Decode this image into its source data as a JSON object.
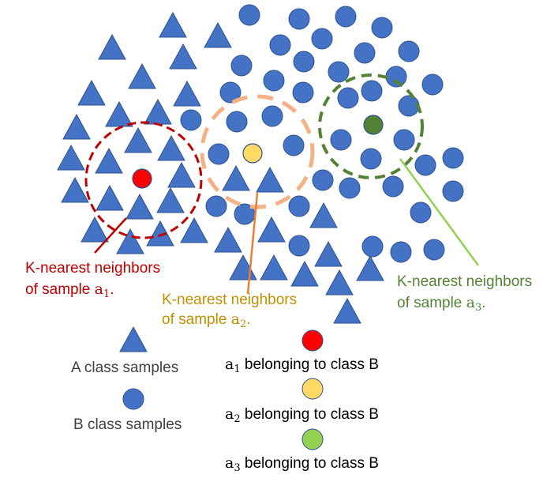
{
  "colors": {
    "samples": "#4472c4",
    "stroke": "#2f528f",
    "a1": "#ff0000",
    "a2": "#ffd966",
    "a3": "#548235",
    "a3_legend": "#92d050",
    "ring1": "#c00000",
    "ring2": "#f4b183",
    "ring3": "#548235",
    "label1": "#c00000",
    "label2": "#bf9000",
    "label3": "#548235",
    "pointer1": "#c00000",
    "pointer2": "#ed7d31",
    "pointer3": "#92d050",
    "text": "#404040"
  },
  "neighborhoods": [
    {
      "id": "1",
      "line1": "K-nearest neighbors",
      "line2_prefix": "of sample ",
      "var": "a",
      "sub": "1",
      "suffix": "."
    },
    {
      "id": "2",
      "line1": "K-nearest neighbors",
      "line2_prefix": "of sample ",
      "var": "a",
      "sub": "2",
      "suffix": "."
    },
    {
      "id": "3",
      "line1": "K-nearest neighbors",
      "line2_prefix": "of sample ",
      "var": "a",
      "sub": "3",
      "suffix": "."
    }
  ],
  "legend": {
    "class_a": "A class samples",
    "class_b": "B class samples",
    "a1": {
      "var": "a",
      "sub": "1",
      "text": " belonging to class B"
    },
    "a2": {
      "var": "a",
      "sub": "2",
      "text": " belonging to class B"
    },
    "a3": {
      "var": "a",
      "sub": "3",
      "text": " belonging to class B"
    }
  }
}
